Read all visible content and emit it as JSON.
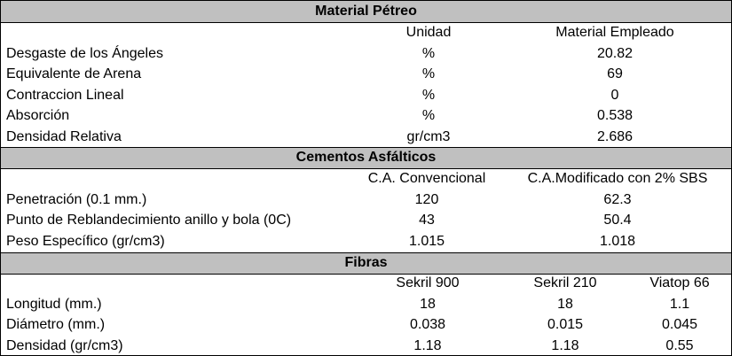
{
  "sections": [
    {
      "title": "Material Pétreo",
      "columns": [
        "Unidad",
        "Material Empleado"
      ],
      "rows": [
        {
          "label": "Desgaste de los Ángeles",
          "values": [
            "%",
            "20.82"
          ]
        },
        {
          "label": "Equivalente de Arena",
          "values": [
            "%",
            "69"
          ]
        },
        {
          "label": "Contraccion Lineal",
          "values": [
            "%",
            "0"
          ]
        },
        {
          "label": "Absorción",
          "values": [
            "%",
            "0.538"
          ]
        },
        {
          "label": "Densidad Relativa",
          "values": [
            "gr/cm3",
            "2.686"
          ]
        }
      ]
    },
    {
      "title": "Cementos Asfálticos",
      "columns": [
        "C.A. Convencional",
        "C.A.Modificado con 2% SBS"
      ],
      "rows": [
        {
          "label": "Penetración (0.1 mm.)",
          "values": [
            "120",
            "62.3"
          ]
        },
        {
          "label": "Punto de Reblandecimiento anillo y bola (0C)",
          "values": [
            "43",
            "50.4"
          ]
        },
        {
          "label": "Peso Específico (gr/cm3)",
          "values": [
            "1.015",
            "1.018"
          ]
        }
      ]
    },
    {
      "title": "Fibras",
      "columns": [
        "Sekril 900",
        "Sekril 210",
        "Viatop 66"
      ],
      "rows": [
        {
          "label": "Longitud (mm.)",
          "values": [
            "18",
            "18",
            "1.1"
          ]
        },
        {
          "label": "Diámetro (mm.)",
          "values": [
            "0.038",
            "0.015",
            "0.045"
          ]
        },
        {
          "label": "Densidad (gr/cm3)",
          "values": [
            "1.18",
            "1.18",
            "0.55"
          ]
        }
      ]
    }
  ]
}
